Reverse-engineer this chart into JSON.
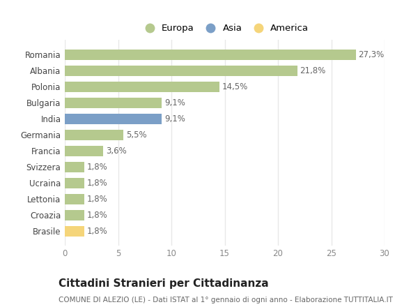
{
  "categories": [
    "Romania",
    "Albania",
    "Polonia",
    "Bulgaria",
    "India",
    "Germania",
    "Francia",
    "Svizzera",
    "Ucraina",
    "Lettonia",
    "Croazia",
    "Brasile"
  ],
  "values": [
    27.3,
    21.8,
    14.5,
    9.1,
    9.1,
    5.5,
    3.6,
    1.8,
    1.8,
    1.8,
    1.8,
    1.8
  ],
  "labels": [
    "27,3%",
    "21,8%",
    "14,5%",
    "9,1%",
    "9,1%",
    "5,5%",
    "3,6%",
    "1,8%",
    "1,8%",
    "1,8%",
    "1,8%",
    "1,8%"
  ],
  "continents": [
    "Europa",
    "Europa",
    "Europa",
    "Europa",
    "Asia",
    "Europa",
    "Europa",
    "Europa",
    "Europa",
    "Europa",
    "Europa",
    "America"
  ],
  "colors": {
    "Europa": "#b5c98e",
    "Asia": "#7b9fc7",
    "America": "#f5d57a"
  },
  "legend_order": [
    "Europa",
    "Asia",
    "America"
  ],
  "xlim": [
    0,
    30
  ],
  "xticks": [
    0,
    5,
    10,
    15,
    20,
    25,
    30
  ],
  "title": "Cittadini Stranieri per Cittadinanza",
  "subtitle": "COMUNE DI ALEZIO (LE) - Dati ISTAT al 1° gennaio di ogni anno - Elaborazione TUTTITALIA.IT",
  "bg_color": "#ffffff",
  "grid_color": "#e8e8e8",
  "bar_height": 0.65,
  "label_fontsize": 8.5,
  "ytick_fontsize": 8.5,
  "xtick_fontsize": 8.5,
  "title_fontsize": 11,
  "subtitle_fontsize": 7.5,
  "legend_fontsize": 9.5
}
